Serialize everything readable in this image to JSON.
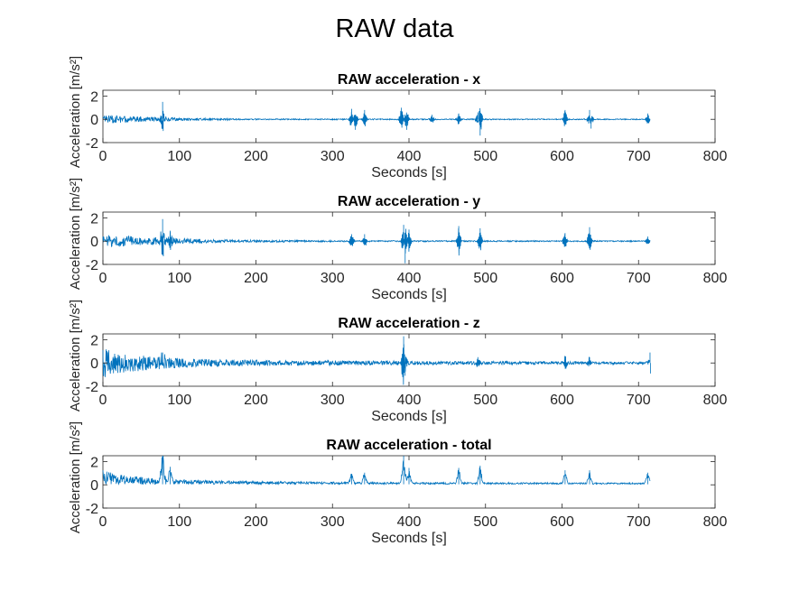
{
  "figure": {
    "title": "RAW data"
  },
  "chart_data": [
    {
      "type": "line",
      "title": "RAW acceleration - x",
      "xlabel": "Seconds [s]",
      "ylabel": "Acceleration [m/s²]",
      "xlim": [
        0,
        800
      ],
      "ylim": [
        -2,
        2.5
      ],
      "xticks": [
        0,
        100,
        200,
        300,
        400,
        500,
        600,
        700,
        800
      ],
      "yticks": [
        -2,
        0,
        2
      ],
      "x_extent": [
        0,
        715
      ],
      "series_color": "#0072BD",
      "base_offset": 0,
      "noise_envelope": [
        [
          0,
          0.35
        ],
        [
          20,
          0.3
        ],
        [
          60,
          0.2
        ],
        [
          120,
          0.1
        ],
        [
          200,
          0.05
        ],
        [
          320,
          0.05
        ],
        [
          715,
          0.04
        ]
      ],
      "bursts": [
        {
          "t": 78,
          "amp": 1.5
        },
        {
          "t": 78.8,
          "amp": -1.0
        },
        {
          "t": 325,
          "amp": 0.9
        },
        {
          "t": 330,
          "amp": -0.9
        },
        {
          "t": 342,
          "amp": 0.8
        },
        {
          "t": 390,
          "amp": 1.0
        },
        {
          "t": 397,
          "amp": -0.9
        },
        {
          "t": 430,
          "amp": 0.4
        },
        {
          "t": 465,
          "amp": 0.5
        },
        {
          "t": 490,
          "amp": 0.6
        },
        {
          "t": 493,
          "amp": -1.4
        },
        {
          "t": 604,
          "amp": 0.8
        },
        {
          "t": 636,
          "amp": 0.8
        },
        {
          "t": 638,
          "amp": -0.8
        },
        {
          "t": 712,
          "amp": 0.5
        }
      ]
    },
    {
      "type": "line",
      "title": "RAW acceleration - y",
      "xlabel": "Seconds [s]",
      "ylabel": "Acceleration [m/s²]",
      "xlim": [
        0,
        800
      ],
      "ylim": [
        -2,
        2.5
      ],
      "xticks": [
        0,
        100,
        200,
        300,
        400,
        500,
        600,
        700,
        800
      ],
      "yticks": [
        -2,
        0,
        2
      ],
      "x_extent": [
        0,
        715
      ],
      "series_color": "#0072BD",
      "base_offset": 0,
      "noise_envelope": [
        [
          0,
          0.55
        ],
        [
          30,
          0.45
        ],
        [
          80,
          0.3
        ],
        [
          150,
          0.12
        ],
        [
          250,
          0.08
        ],
        [
          320,
          0.06
        ],
        [
          715,
          0.05
        ]
      ],
      "bursts": [
        {
          "t": 78,
          "amp": 1.9
        },
        {
          "t": 79,
          "amp": -1.3
        },
        {
          "t": 88,
          "amp": 0.9
        },
        {
          "t": 325,
          "amp": 0.6
        },
        {
          "t": 342,
          "amp": 0.6
        },
        {
          "t": 393,
          "amp": 1.4
        },
        {
          "t": 395,
          "amp": -1.9
        },
        {
          "t": 400,
          "amp": 1.0
        },
        {
          "t": 465,
          "amp": 1.3
        },
        {
          "t": 493,
          "amp": 1.1
        },
        {
          "t": 604,
          "amp": 0.7
        },
        {
          "t": 636,
          "amp": 1.2
        },
        {
          "t": 712,
          "amp": 0.4
        }
      ]
    },
    {
      "type": "line",
      "title": "RAW acceleration - z",
      "xlabel": "Seconds [s]",
      "ylabel": "Acceleration [m/s²]",
      "xlim": [
        0,
        800
      ],
      "ylim": [
        -2,
        2.5
      ],
      "xticks": [
        0,
        100,
        200,
        300,
        400,
        500,
        600,
        700,
        800
      ],
      "yticks": [
        -2,
        0,
        2
      ],
      "x_extent": [
        0,
        715
      ],
      "series_color": "#0072BD",
      "base_offset": 0,
      "noise_envelope": [
        [
          0,
          1.3
        ],
        [
          20,
          0.9
        ],
        [
          60,
          0.6
        ],
        [
          120,
          0.35
        ],
        [
          200,
          0.25
        ],
        [
          320,
          0.2
        ],
        [
          450,
          0.15
        ],
        [
          715,
          0.12
        ]
      ],
      "bursts": [
        {
          "t": 78,
          "amp": 0.9
        },
        {
          "t": 393,
          "amp": 2.3
        },
        {
          "t": 395,
          "amp": -1.1
        },
        {
          "t": 490,
          "amp": 0.5
        },
        {
          "t": 604,
          "amp": 0.6
        },
        {
          "t": 636,
          "amp": 0.5
        },
        {
          "t": 715,
          "amp": 0.9
        },
        {
          "t": 715.5,
          "amp": -0.9
        }
      ]
    },
    {
      "type": "line",
      "title": "RAW acceleration - total",
      "xlabel": "Seconds [s]",
      "ylabel": "Acceleration [m/s²]",
      "xlim": [
        0,
        800
      ],
      "ylim": [
        -2,
        2.5
      ],
      "xticks": [
        0,
        100,
        200,
        300,
        400,
        500,
        600,
        700,
        800
      ],
      "yticks": [
        -2,
        0,
        2
      ],
      "x_extent": [
        0,
        715
      ],
      "series_color": "#0072BD",
      "base_offset": 0.05,
      "positive_only": true,
      "noise_envelope": [
        [
          0,
          1.2
        ],
        [
          20,
          0.9
        ],
        [
          60,
          0.55
        ],
        [
          120,
          0.35
        ],
        [
          200,
          0.25
        ],
        [
          320,
          0.18
        ],
        [
          715,
          0.12
        ]
      ],
      "bursts": [
        {
          "t": 78,
          "amp": 2.5
        },
        {
          "t": 88,
          "amp": 1.5
        },
        {
          "t": 325,
          "amp": 0.9
        },
        {
          "t": 342,
          "amp": 1.0
        },
        {
          "t": 393,
          "amp": 2.5
        },
        {
          "t": 400,
          "amp": 1.4
        },
        {
          "t": 465,
          "amp": 1.4
        },
        {
          "t": 493,
          "amp": 1.6
        },
        {
          "t": 604,
          "amp": 1.2
        },
        {
          "t": 636,
          "amp": 1.2
        },
        {
          "t": 712,
          "amp": 1.0
        }
      ]
    }
  ]
}
